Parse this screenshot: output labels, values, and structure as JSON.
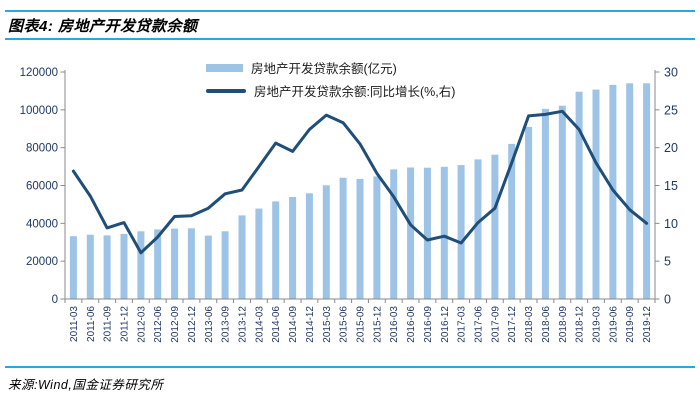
{
  "header": {
    "title": "图表4: 房地产开发贷款余额"
  },
  "footer": {
    "source": "来源:Wind,国金证券研究所"
  },
  "colors": {
    "accent_rule": "#29A7DF",
    "bar_fill": "#9DC3E6",
    "line_stroke": "#1F4E79",
    "axis_line": "#8A8A8A",
    "tick_label": "#1F3864"
  },
  "chart_data": {
    "type": "bar",
    "title": "图表4: 房地产开发贷款余额",
    "legend_position": "top-center",
    "grid": "off",
    "categories": [
      "2011-03",
      "2011-06",
      "2011-09",
      "2011-12",
      "2012-03",
      "2012-06",
      "2012-09",
      "2012-12",
      "2013-06",
      "2013-09",
      "2013-12",
      "2014-03",
      "2014-06",
      "2014-09",
      "2014-12",
      "2015-03",
      "2015-06",
      "2015-09",
      "2015-12",
      "2016-03",
      "2016-06",
      "2016-09",
      "2016-12",
      "2017-03",
      "2017-06",
      "2017-09",
      "2017-12",
      "2018-03",
      "2018-06",
      "2018-09",
      "2018-12",
      "2019-03",
      "2019-06",
      "2019-09",
      "2019-12"
    ],
    "left_axis": {
      "min": 0,
      "max": 120000,
      "step": 20000,
      "tick_labels": [
        "0",
        "20000",
        "40000",
        "60000",
        "80000",
        "100000",
        "120000"
      ]
    },
    "right_axis": {
      "min": 0,
      "max": 30,
      "step": 5,
      "tick_labels": [
        "0",
        "5",
        "10",
        "15",
        "20",
        "25",
        "30"
      ]
    },
    "series": [
      {
        "name": "房地产开发贷款余额(亿元)",
        "type": "bar",
        "axis": "left",
        "color": "#9DC3E6",
        "values": [
          33200,
          34000,
          33600,
          34400,
          35800,
          36800,
          37200,
          37400,
          33500,
          35800,
          44200,
          47800,
          51600,
          53900,
          55900,
          60100,
          64100,
          63500,
          64800,
          68500,
          69500,
          69400,
          69900,
          70800,
          73800,
          76300,
          82000,
          91000,
          100500,
          102200,
          109600,
          110700,
          113200,
          114000,
          114000
        ]
      },
      {
        "name": "房地产开发贷款余额:同比增长(%,右)",
        "type": "line",
        "axis": "right",
        "color": "#1F4E79",
        "values": [
          16.9,
          13.6,
          9.4,
          10.1,
          6.1,
          8.2,
          10.9,
          11.0,
          12.0,
          13.9,
          14.4,
          17.5,
          20.6,
          19.5,
          22.4,
          24.3,
          23.3,
          20.5,
          16.6,
          13.5,
          9.8,
          7.8,
          8.3,
          7.4,
          10.1,
          12.0,
          18.0,
          24.2,
          24.4,
          24.8,
          22.4,
          18.0,
          14.4,
          11.8,
          10.0
        ]
      }
    ]
  }
}
